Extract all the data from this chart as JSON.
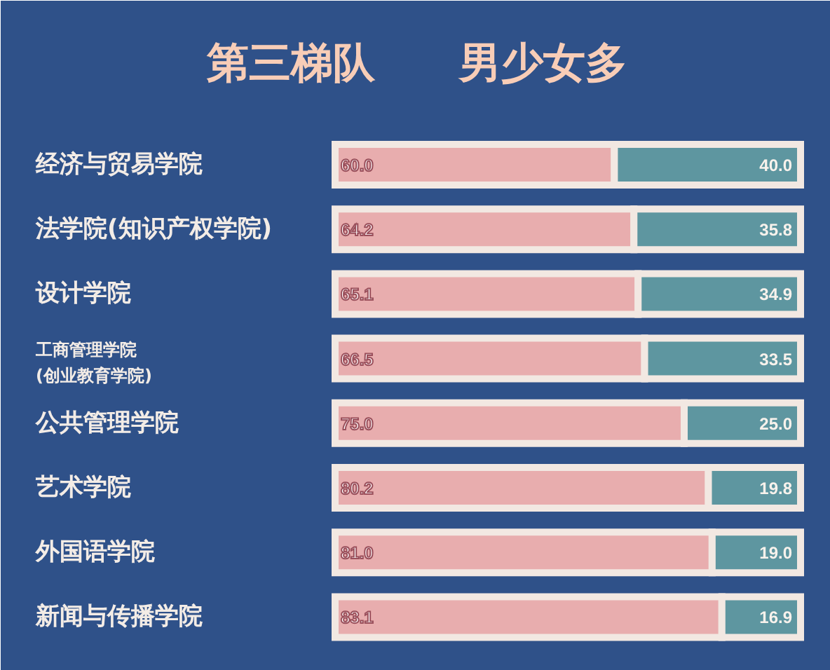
{
  "chart_data": {
    "type": "bar",
    "orientation": "horizontal",
    "stacked": true,
    "title": "第三梯队　　男少女多",
    "categories": [
      "经济与贸易学院",
      "法学院(知识产权学院)",
      "设计学院",
      "工商管理学院\n(创业教育学院)",
      "公共管理学院",
      "艺术学院",
      "外国语学院",
      "新闻与传播学院"
    ],
    "series": [
      {
        "color": "#e8adae",
        "values": [
          60.0,
          64.2,
          65.1,
          66.5,
          75.0,
          80.2,
          81.0,
          83.1
        ],
        "value_labels": [
          "60.0",
          "64.2",
          "65.1",
          "66.5",
          "75.0",
          "80.2",
          "81.0",
          "83.1"
        ]
      },
      {
        "color": "#5e96a0",
        "values": [
          40.0,
          35.8,
          34.9,
          33.5,
          25.0,
          19.8,
          19.0,
          16.9
        ],
        "value_labels": [
          "40.0",
          "35.8",
          "34.9",
          "33.5",
          "25.0",
          "19.8",
          "19.0",
          "16.9"
        ]
      }
    ],
    "tick_labels": "y"
  }
}
